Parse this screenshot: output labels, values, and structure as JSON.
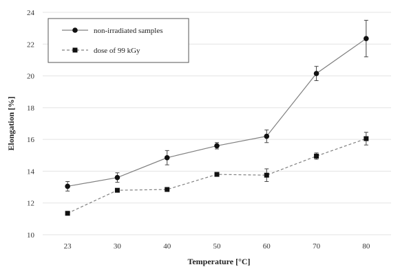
{
  "chart_data": {
    "type": "line",
    "xlabel": "Temperature [°C]",
    "ylabel": "Elongation [%]",
    "categories": [
      "23",
      "30",
      "40",
      "50",
      "60",
      "70",
      "80"
    ],
    "ylim": [
      10,
      24
    ],
    "yticks": [
      10,
      12,
      14,
      16,
      18,
      20,
      22,
      24
    ],
    "grid": true,
    "legend_position": "top-left",
    "series": [
      {
        "name": "non-irradiated samples",
        "values": [
          13.05,
          13.6,
          14.85,
          15.6,
          16.2,
          20.15,
          22.35
        ],
        "errors": [
          0.3,
          0.3,
          0.45,
          0.2,
          0.4,
          0.45,
          1.15
        ],
        "color": "#7f7f7f",
        "line_style": "solid",
        "marker": "circle"
      },
      {
        "name": "dose of 99 kGy",
        "values": [
          11.35,
          12.8,
          12.85,
          13.8,
          13.75,
          14.95,
          16.05
        ],
        "errors": [
          0.1,
          0.1,
          0.1,
          0.1,
          0.4,
          0.2,
          0.4
        ],
        "color": "#7f7f7f",
        "line_style": "dashed",
        "marker": "square"
      }
    ]
  }
}
